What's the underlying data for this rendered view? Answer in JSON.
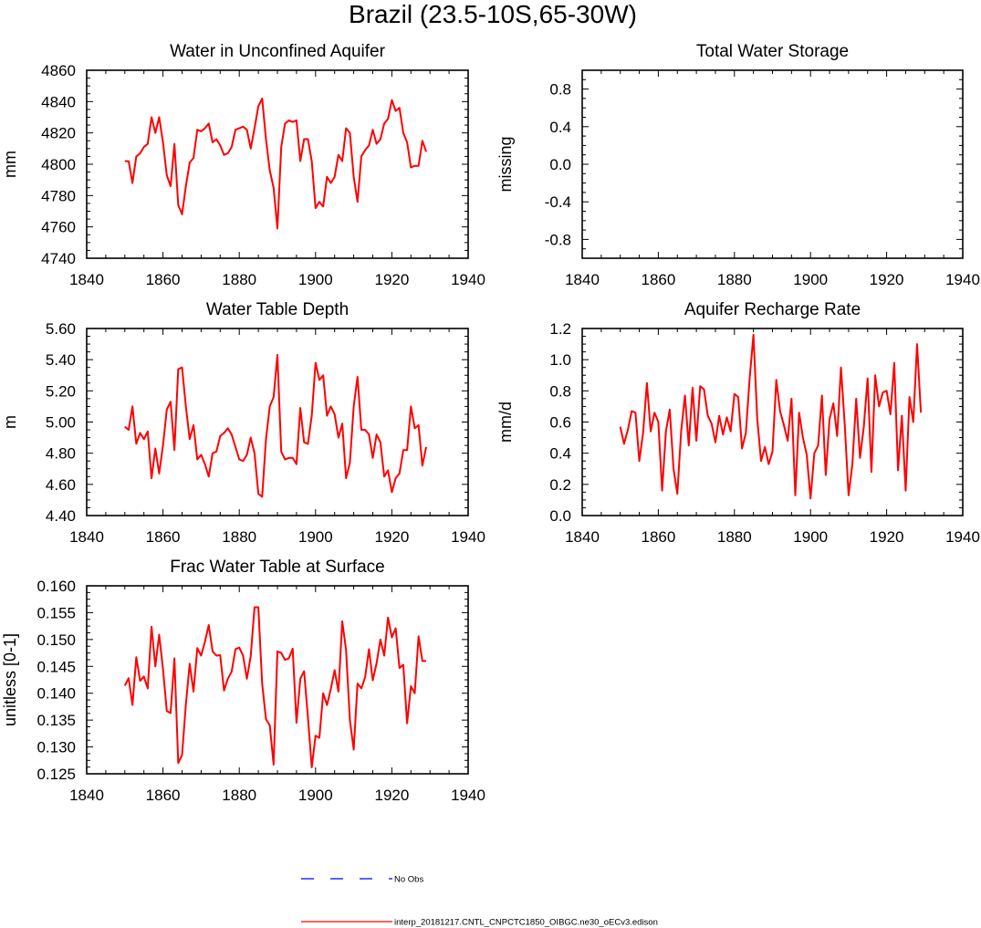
{
  "title": "Brazil (23.5-10S,65-30W)",
  "legend": {
    "items": [
      {
        "label": "No Obs",
        "style": "dashed",
        "color": "#0000ff"
      },
      {
        "label": "interp_20181217.CNTL_CNPCTC1850_OIBGC.ne30_oECv3.edison",
        "style": "solid",
        "color": "#ff0000"
      }
    ]
  },
  "chart_data": [
    {
      "id": "unconfined",
      "type": "line",
      "title": "Water in Unconfined Aquifer",
      "ylabel": "mm",
      "xlim": [
        1840,
        1940
      ],
      "ylim": [
        4740,
        4860
      ],
      "xticks": [
        "1840",
        "1860",
        "1880",
        "1900",
        "1920",
        "1940"
      ],
      "yticks": [
        "4740",
        "4760",
        "4780",
        "4800",
        "4820",
        "4840",
        "4860"
      ],
      "x_start": 1850,
      "x_step": 1,
      "color": "#ff0000",
      "values": [
        4802,
        4802,
        4788,
        4805,
        4807,
        4811,
        4813,
        4830,
        4820,
        4830,
        4814,
        4793,
        4786,
        4813,
        4774,
        4768,
        4786,
        4801,
        4804,
        4822,
        4821,
        4823,
        4826,
        4814,
        4816,
        4812,
        4806,
        4807,
        4811,
        4822,
        4823,
        4824,
        4822,
        4810,
        4823,
        4837,
        4842,
        4816,
        4796,
        4785,
        4759,
        4811,
        4826,
        4828,
        4827,
        4828,
        4802,
        4816,
        4816,
        4802,
        4772,
        4776,
        4773,
        4792,
        4788,
        4792,
        4806,
        4802,
        4823,
        4820,
        4792,
        4776,
        4805,
        4809,
        4812,
        4822,
        4813,
        4816,
        4826,
        4829,
        4841,
        4834,
        4836,
        4820,
        4814,
        4798,
        4799,
        4799,
        4815,
        4808
      ]
    },
    {
      "id": "tws",
      "type": "line",
      "title": "Total Water Storage",
      "ylabel": "missing",
      "xlim": [
        1840,
        1940
      ],
      "ylim": [
        -1,
        1
      ],
      "xticks": [
        "1840",
        "1860",
        "1880",
        "1900",
        "1920",
        "1940"
      ],
      "yticks": [
        "-0.8",
        "-0.4",
        "0.0",
        "0.4",
        "0.8"
      ],
      "x_start": 1850,
      "x_step": 1,
      "color": "#ff0000",
      "values": []
    },
    {
      "id": "wtd",
      "type": "line",
      "title": "Water Table Depth",
      "ylabel": "m",
      "xlim": [
        1840,
        1940
      ],
      "ylim": [
        4.4,
        5.6
      ],
      "xticks": [
        "1840",
        "1860",
        "1880",
        "1900",
        "1920",
        "1940"
      ],
      "yticks": [
        "4.40",
        "4.60",
        "4.80",
        "5.00",
        "5.20",
        "5.40",
        "5.60"
      ],
      "x_start": 1850,
      "x_step": 1,
      "color": "#ff0000",
      "values": [
        4.97,
        4.95,
        5.1,
        4.86,
        4.93,
        4.89,
        4.94,
        4.64,
        4.83,
        4.67,
        4.85,
        5.08,
        5.13,
        4.82,
        5.34,
        5.35,
        5.1,
        4.89,
        4.98,
        4.76,
        4.79,
        4.73,
        4.65,
        4.8,
        4.81,
        4.91,
        4.93,
        4.96,
        4.92,
        4.84,
        4.76,
        4.75,
        4.79,
        4.9,
        4.8,
        4.54,
        4.52,
        4.89,
        5.1,
        5.16,
        5.43,
        4.81,
        4.76,
        4.77,
        4.77,
        4.73,
        5.09,
        4.87,
        4.86,
        5.04,
        5.38,
        5.27,
        5.3,
        5.04,
        5.1,
        5.05,
        4.9,
        4.99,
        4.64,
        4.74,
        5.1,
        5.29,
        4.95,
        4.95,
        4.92,
        4.77,
        4.92,
        4.87,
        4.65,
        4.69,
        4.55,
        4.64,
        4.67,
        4.82,
        4.82,
        5.1,
        4.96,
        4.98,
        4.72,
        4.84
      ]
    },
    {
      "id": "recharge",
      "type": "line",
      "title": "Aquifer Recharge Rate",
      "ylabel": "mm/d",
      "xlim": [
        1840,
        1940
      ],
      "ylim": [
        0.0,
        1.2
      ],
      "xticks": [
        "1840",
        "1860",
        "1880",
        "1900",
        "1920",
        "1940"
      ],
      "yticks": [
        "0.0",
        "0.2",
        "0.4",
        "0.6",
        "0.8",
        "1.0",
        "1.2"
      ],
      "x_start": 1850,
      "x_step": 1,
      "color": "#ff0000",
      "values": [
        0.57,
        0.46,
        0.55,
        0.67,
        0.66,
        0.35,
        0.53,
        0.85,
        0.54,
        0.66,
        0.6,
        0.16,
        0.54,
        0.68,
        0.3,
        0.14,
        0.54,
        0.77,
        0.45,
        0.82,
        0.48,
        0.83,
        0.81,
        0.64,
        0.59,
        0.47,
        0.64,
        0.52,
        0.63,
        0.54,
        0.78,
        0.76,
        0.43,
        0.53,
        0.88,
        1.16,
        0.62,
        0.35,
        0.44,
        0.33,
        0.41,
        0.87,
        0.67,
        0.58,
        0.48,
        0.75,
        0.13,
        0.66,
        0.5,
        0.39,
        0.11,
        0.4,
        0.45,
        0.77,
        0.26,
        0.62,
        0.72,
        0.51,
        0.95,
        0.58,
        0.13,
        0.33,
        0.75,
        0.37,
        0.57,
        0.88,
        0.28,
        0.9,
        0.7,
        0.79,
        0.8,
        0.65,
        0.98,
        0.29,
        0.64,
        0.16,
        0.76,
        0.6,
        1.1,
        0.66
      ]
    },
    {
      "id": "frac",
      "type": "line",
      "title": "Frac Water Table at Surface",
      "ylabel": "unitless [0-1]",
      "xlim": [
        1840,
        1940
      ],
      "ylim": [
        0.125,
        0.16
      ],
      "xticks": [
        "1840",
        "1860",
        "1880",
        "1900",
        "1920",
        "1940"
      ],
      "yticks": [
        "0.125",
        "0.130",
        "0.135",
        "0.140",
        "0.145",
        "0.150",
        "0.155",
        "0.160"
      ],
      "x_start": 1850,
      "x_step": 1,
      "color": "#ff0000",
      "values": [
        0.1414,
        0.1428,
        0.1378,
        0.1467,
        0.1423,
        0.1431,
        0.1409,
        0.1524,
        0.145,
        0.1509,
        0.1445,
        0.1367,
        0.1363,
        0.1465,
        0.127,
        0.1285,
        0.1379,
        0.1455,
        0.1403,
        0.1484,
        0.147,
        0.1496,
        0.1527,
        0.1478,
        0.147,
        0.1471,
        0.1405,
        0.1427,
        0.144,
        0.1482,
        0.1485,
        0.147,
        0.1427,
        0.1469,
        0.156,
        0.156,
        0.1418,
        0.1352,
        0.134,
        0.1267,
        0.1478,
        0.1475,
        0.1462,
        0.1465,
        0.1483,
        0.1345,
        0.1427,
        0.1441,
        0.1355,
        0.1262,
        0.1321,
        0.1317,
        0.14,
        0.1378,
        0.1408,
        0.1443,
        0.1403,
        0.1534,
        0.148,
        0.135,
        0.1295,
        0.1418,
        0.1409,
        0.143,
        0.1482,
        0.1424,
        0.1456,
        0.15,
        0.147,
        0.1541,
        0.1504,
        0.1521,
        0.1447,
        0.1453,
        0.1344,
        0.1413,
        0.14,
        0.1506,
        0.146,
        0.146
      ]
    }
  ]
}
